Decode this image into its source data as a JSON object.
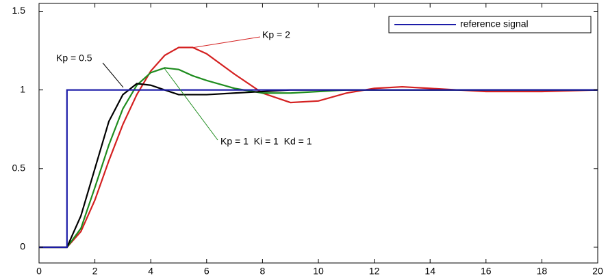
{
  "chart_data": {
    "type": "line",
    "x": [
      0,
      1,
      1.5,
      2,
      2.5,
      3,
      3.5,
      4,
      4.5,
      5,
      5.5,
      6,
      7,
      8,
      9,
      10,
      11,
      12,
      13,
      14,
      15,
      16,
      18,
      20
    ],
    "series": [
      {
        "name": "reference signal",
        "color": "#1c1ca8",
        "x": [
          0,
          1,
          1,
          20
        ],
        "values": [
          0,
          0,
          1,
          1
        ]
      },
      {
        "color": "#000000",
        "values": [
          0,
          0,
          0.2,
          0.5,
          0.8,
          0.97,
          1.04,
          1.03,
          1.0,
          0.97,
          0.97,
          0.97,
          0.98,
          0.99,
          1.0,
          1.0,
          1.0,
          1.0,
          1.0,
          1.0,
          1.0,
          1.0,
          1.0,
          1.0
        ]
      },
      {
        "color": "#1e8c1e",
        "values": [
          0,
          0,
          0.12,
          0.38,
          0.65,
          0.88,
          1.03,
          1.11,
          1.14,
          1.13,
          1.09,
          1.06,
          1.01,
          0.98,
          0.98,
          0.99,
          1.0,
          1.0,
          1.0,
          1.0,
          1.0,
          1.0,
          1.0,
          1.0
        ]
      },
      {
        "color": "#d42020",
        "values": [
          0,
          0,
          0.1,
          0.3,
          0.55,
          0.78,
          0.97,
          1.12,
          1.22,
          1.27,
          1.27,
          1.23,
          1.1,
          0.98,
          0.92,
          0.93,
          0.98,
          1.01,
          1.02,
          1.01,
          1.0,
          0.99,
          0.99,
          1.0
        ]
      }
    ],
    "annotations": [
      "Kp = 2",
      "Kp = 0.5",
      "Kp = 1  Ki = 1  Kd = 1"
    ],
    "xlim": [
      0,
      20
    ],
    "xticks": [
      0,
      2,
      4,
      6,
      8,
      10,
      12,
      14,
      16,
      18,
      20
    ],
    "ylim": [
      -0.1,
      1.55
    ],
    "yticks": [
      0,
      0.5,
      1,
      1.5
    ],
    "grid": false,
    "legend": "upper right"
  }
}
